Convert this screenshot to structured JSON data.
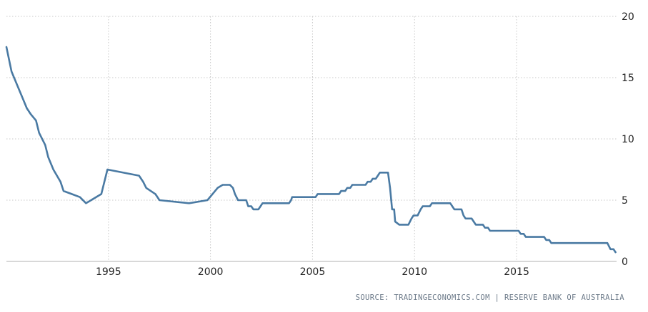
{
  "chart_data": {
    "type": "line",
    "title": "",
    "xlabel": "",
    "ylabel": "",
    "x_ticks": [
      "1995",
      "2000",
      "2005",
      "2010",
      "2015"
    ],
    "y_ticks": [
      "0",
      "5",
      "10",
      "15",
      "20"
    ],
    "xlim": [
      1990.0,
      2019.9
    ],
    "ylim": [
      0,
      20
    ],
    "grid": "dotted",
    "legend": "none",
    "y_axis_side": "right",
    "line_color": "#4a7aa3",
    "series": [
      {
        "values": [
          [
            1990.0,
            17.5
          ],
          [
            1990.25,
            15.5
          ],
          [
            1990.5,
            14.5
          ],
          [
            1990.75,
            13.5
          ],
          [
            1991.0,
            12.5
          ],
          [
            1991.2,
            12.0
          ],
          [
            1991.45,
            11.5
          ],
          [
            1991.6,
            10.5
          ],
          [
            1991.9,
            9.5
          ],
          [
            1992.05,
            8.5
          ],
          [
            1992.3,
            7.5
          ],
          [
            1992.65,
            6.5
          ],
          [
            1992.8,
            5.75
          ],
          [
            1993.2,
            5.5
          ],
          [
            1993.6,
            5.25
          ],
          [
            1993.9,
            4.75
          ],
          [
            1994.65,
            5.5
          ],
          [
            1994.95,
            7.5
          ],
          [
            1996.5,
            7.0
          ],
          [
            1996.7,
            6.5
          ],
          [
            1996.85,
            6.0
          ],
          [
            1997.3,
            5.5
          ],
          [
            1997.5,
            5.0
          ],
          [
            1998.95,
            4.75
          ],
          [
            1999.85,
            5.0
          ],
          [
            2000.1,
            5.5
          ],
          [
            2000.35,
            6.0
          ],
          [
            2000.6,
            6.25
          ],
          [
            2000.95,
            6.25
          ],
          [
            2001.1,
            6.0
          ],
          [
            2001.2,
            5.5
          ],
          [
            2001.35,
            5.0
          ],
          [
            2001.75,
            5.0
          ],
          [
            2001.85,
            4.5
          ],
          [
            2002.0,
            4.5
          ],
          [
            2002.1,
            4.25
          ],
          [
            2002.35,
            4.25
          ],
          [
            2002.45,
            4.5
          ],
          [
            2002.55,
            4.75
          ],
          [
            2003.85,
            4.75
          ],
          [
            2003.95,
            5.0
          ],
          [
            2004.0,
            5.25
          ],
          [
            2005.15,
            5.25
          ],
          [
            2005.25,
            5.5
          ],
          [
            2006.3,
            5.5
          ],
          [
            2006.4,
            5.75
          ],
          [
            2006.6,
            5.75
          ],
          [
            2006.7,
            6.0
          ],
          [
            2006.85,
            6.0
          ],
          [
            2006.95,
            6.25
          ],
          [
            2007.6,
            6.25
          ],
          [
            2007.7,
            6.5
          ],
          [
            2007.85,
            6.5
          ],
          [
            2007.95,
            6.75
          ],
          [
            2008.1,
            6.75
          ],
          [
            2008.2,
            7.0
          ],
          [
            2008.3,
            7.25
          ],
          [
            2008.7,
            7.25
          ],
          [
            2008.8,
            6.0
          ],
          [
            2008.9,
            4.25
          ],
          [
            2009.0,
            4.25
          ],
          [
            2009.05,
            3.25
          ],
          [
            2009.25,
            3.0
          ],
          [
            2009.7,
            3.0
          ],
          [
            2009.85,
            3.5
          ],
          [
            2009.95,
            3.75
          ],
          [
            2010.15,
            3.75
          ],
          [
            2010.3,
            4.25
          ],
          [
            2010.4,
            4.5
          ],
          [
            2010.75,
            4.5
          ],
          [
            2010.85,
            4.75
          ],
          [
            2011.75,
            4.75
          ],
          [
            2011.85,
            4.5
          ],
          [
            2011.95,
            4.25
          ],
          [
            2012.3,
            4.25
          ],
          [
            2012.4,
            3.75
          ],
          [
            2012.5,
            3.5
          ],
          [
            2012.8,
            3.5
          ],
          [
            2012.9,
            3.25
          ],
          [
            2013.0,
            3.0
          ],
          [
            2013.35,
            3.0
          ],
          [
            2013.45,
            2.75
          ],
          [
            2013.6,
            2.75
          ],
          [
            2013.7,
            2.5
          ],
          [
            2015.1,
            2.5
          ],
          [
            2015.2,
            2.25
          ],
          [
            2015.35,
            2.25
          ],
          [
            2015.45,
            2.0
          ],
          [
            2016.35,
            2.0
          ],
          [
            2016.45,
            1.75
          ],
          [
            2016.6,
            1.75
          ],
          [
            2016.7,
            1.5
          ],
          [
            2019.45,
            1.5
          ],
          [
            2019.6,
            1.0
          ],
          [
            2019.75,
            1.0
          ],
          [
            2019.85,
            0.75
          ]
        ]
      }
    ]
  },
  "footer": {
    "source": "SOURCE: TRADINGECONOMICS.COM | RESERVE BANK OF AUSTRALIA"
  }
}
